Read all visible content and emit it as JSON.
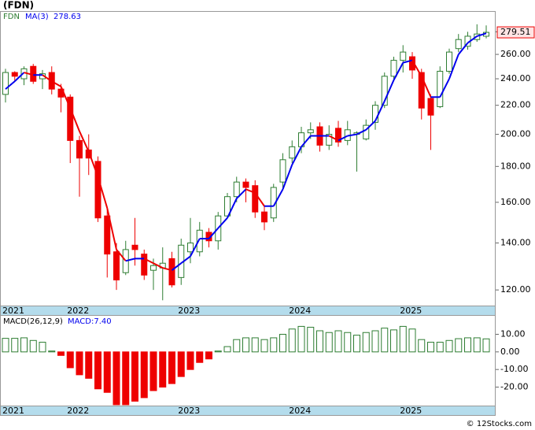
{
  "chart_data": [
    {
      "type": "candlestick",
      "title": "(FDN)",
      "symbol": "FDN",
      "categories": [
        "2021",
        null,
        null,
        null,
        null,
        null,
        null,
        "2022",
        null,
        null,
        null,
        null,
        null,
        null,
        null,
        null,
        null,
        null,
        null,
        "2023",
        null,
        null,
        null,
        null,
        null,
        null,
        null,
        null,
        null,
        null,
        null,
        "2024",
        null,
        null,
        null,
        null,
        null,
        null,
        null,
        null,
        null,
        null,
        null,
        "2025",
        null,
        null,
        null,
        null,
        null,
        null,
        null,
        null,
        null
      ],
      "open": [
        228,
        245,
        240,
        250,
        240,
        245,
        232,
        226,
        196,
        190,
        183,
        153,
        136,
        127,
        139,
        135,
        128,
        129,
        133,
        125,
        136,
        136,
        145,
        141,
        153,
        163,
        171,
        169,
        155,
        152,
        171,
        185,
        192,
        201,
        205,
        193,
        204,
        196,
        200,
        197,
        208,
        220,
        242,
        255,
        258,
        245,
        225,
        219,
        246,
        265,
        267,
        273,
        276
      ],
      "high": [
        248,
        246,
        250,
        252,
        247,
        250,
        236,
        228,
        199,
        200,
        186,
        157,
        140,
        141,
        152,
        137,
        133,
        138,
        136,
        142,
        152,
        150,
        147,
        155,
        165,
        174,
        173,
        172,
        158,
        170,
        188,
        196,
        205,
        208,
        208,
        206,
        209,
        209,
        202,
        210,
        223,
        245,
        258,
        268,
        262,
        248,
        228,
        250,
        265,
        278,
        280,
        287,
        286
      ],
      "low": [
        222,
        238,
        235,
        236,
        232,
        228,
        215,
        182,
        163,
        175,
        150,
        125,
        120,
        126,
        130,
        124,
        120,
        116,
        121,
        122,
        131,
        134,
        138,
        137,
        152,
        160,
        160,
        152,
        146,
        150,
        167,
        182,
        188,
        197,
        189,
        190,
        192,
        193,
        177,
        196,
        203,
        218,
        238,
        245,
        240,
        210,
        190,
        218,
        244,
        262,
        264,
        271,
        274
      ],
      "close": [
        245,
        242,
        248,
        238,
        244,
        232,
        226,
        196,
        185,
        185,
        152,
        135,
        124,
        137,
        137,
        126,
        130,
        131,
        122,
        139,
        140,
        146,
        141,
        153,
        163,
        171,
        168,
        155,
        150,
        168,
        184,
        192,
        201,
        203,
        193,
        200,
        195,
        203,
        201,
        206,
        220,
        242,
        255,
        262,
        247,
        218,
        213,
        246,
        262,
        273,
        276,
        278,
        279.51
      ],
      "last_value_label": "279.51",
      "up_color": "#2e7d32",
      "down_color": "#ee0000",
      "ma": {
        "name": "MA(3)",
        "label": "278.63",
        "up_color": "#0000ee",
        "down_color": "#ee0000",
        "values": [
          232,
          238,
          245,
          243,
          243,
          238,
          234,
          218,
          202,
          189,
          174,
          157,
          137,
          132,
          133,
          133,
          131,
          129,
          128,
          131,
          134,
          142,
          142,
          147,
          152,
          162,
          167,
          165,
          158,
          158,
          167,
          181,
          192,
          199,
          199,
          199,
          196,
          199,
          200,
          203,
          209,
          223,
          239,
          253,
          255,
          242,
          226,
          226,
          240,
          260,
          270,
          276,
          278.63
        ]
      },
      "log_scale": true,
      "ylim": [
        114,
        299
      ],
      "yticks": [
        {
          "value": 120,
          "label": "120.00"
        },
        {
          "value": 140,
          "label": "140.00"
        },
        {
          "value": 160,
          "label": "160.00"
        },
        {
          "value": 180,
          "label": "180.00"
        },
        {
          "value": 200,
          "label": "200.00"
        },
        {
          "value": 220,
          "label": "220.00"
        },
        {
          "value": 240,
          "label": "240.00"
        },
        {
          "value": 260,
          "label": "260.00"
        },
        {
          "value": 280,
          "label": "280.00"
        }
      ]
    },
    {
      "type": "bar",
      "title": "MACD(26,12,9)",
      "label": "MACD:7.40",
      "categories": [
        "2021",
        null,
        null,
        null,
        null,
        null,
        null,
        "2022",
        null,
        null,
        null,
        null,
        null,
        null,
        null,
        null,
        null,
        null,
        null,
        "2023",
        null,
        null,
        null,
        null,
        null,
        null,
        null,
        null,
        null,
        null,
        null,
        "2024",
        null,
        null,
        null,
        null,
        null,
        null,
        null,
        null,
        null,
        null,
        null,
        "2025",
        null,
        null,
        null,
        null,
        null,
        null,
        null,
        null,
        null
      ],
      "values": [
        7.7,
        7.7,
        8,
        6.5,
        5.5,
        0.5,
        -2,
        -9,
        -13,
        -15,
        -21,
        -23,
        -30,
        -30,
        -28,
        -26,
        -22,
        -20,
        -18,
        -14,
        -10,
        -6,
        -4,
        0.5,
        3,
        7,
        8,
        8,
        7,
        8,
        10,
        13,
        14.5,
        14,
        12,
        11,
        12,
        11,
        9.5,
        11,
        12,
        13.5,
        12.5,
        14.5,
        13,
        7,
        5.5,
        5.5,
        6.5,
        7.5,
        8,
        8,
        7.4
      ],
      "up_color": "#2e7d32",
      "down_color": "#ee0000",
      "ylim": [
        -30.5,
        20.5
      ],
      "yticks": [
        {
          "value": -20,
          "label": "-20.00"
        },
        {
          "value": -10,
          "label": "-10.00"
        },
        {
          "value": 0,
          "label": "0.00"
        },
        {
          "value": 10,
          "label": "10.00"
        }
      ]
    }
  ],
  "footer": "© 12Stocks.com"
}
